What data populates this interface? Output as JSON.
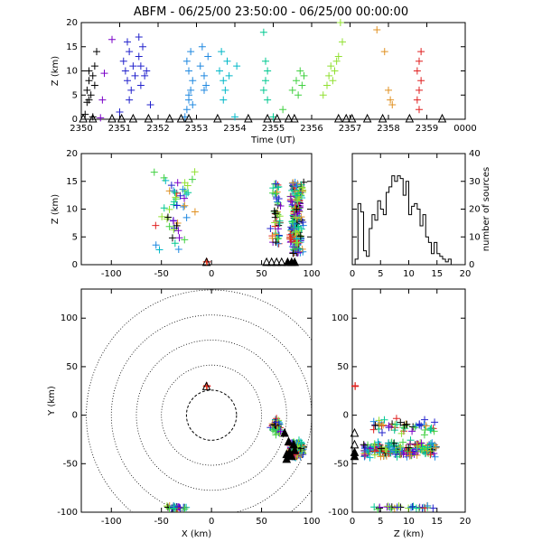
{
  "title": "ABFM - 06/25/00 23:50:00 - 06/25/00 00:00:00",
  "chart_data": [
    {
      "id": "time-height",
      "type": "scatter",
      "xlabel": "Time (UT)",
      "ylabel": "Z (km)",
      "xticks": [
        "2350",
        "2351",
        "2352",
        "2353",
        "2354",
        "2355",
        "2356",
        "2357",
        "2358",
        "2359",
        "0000"
      ],
      "xlim": [
        0,
        10
      ],
      "ylim": [
        0,
        20
      ],
      "yticks": [
        0,
        5,
        10,
        15,
        20
      ],
      "marker": "plus",
      "color_encoding": "time (purple → red)",
      "series": [
        {
          "color": "#000000",
          "x": [
            0.15,
            0.15,
            0.2,
            0.2,
            0.25,
            0.3,
            0.35,
            0.35,
            0.4,
            0.1,
            0.3,
            0.2
          ],
          "y": [
            3.5,
            6,
            8,
            10,
            5,
            9,
            7,
            11,
            14,
            1,
            0.5,
            4
          ]
        },
        {
          "color": "#7a00c8",
          "x": [
            0.6,
            0.55,
            0.8,
            0.5
          ],
          "y": [
            9.5,
            4,
            16.5,
            0.3
          ]
        },
        {
          "color": "#2222cc",
          "x": [
            1.1,
            1.15,
            1.2,
            1.25,
            1.3,
            1.35,
            1.4,
            1.2,
            1.25,
            1.5,
            1.55,
            1.6,
            1.65,
            1.7,
            1.55,
            1.5,
            1.8,
            1.0
          ],
          "y": [
            12,
            10,
            8,
            14,
            6,
            11,
            9,
            16,
            4,
            13,
            11,
            15,
            9,
            10,
            7,
            17,
            3,
            1.5
          ]
        },
        {
          "color": "#1f88e0",
          "x": [
            2.75,
            2.8,
            2.85,
            2.9,
            2.8,
            2.75,
            2.85,
            2.9,
            2.8,
            3.1,
            3.2,
            3.3,
            3.25,
            3.15,
            3.2,
            2.7
          ],
          "y": [
            2,
            4,
            6,
            8,
            10,
            12,
            14,
            3,
            5,
            11,
            9,
            13,
            7,
            15,
            6,
            0.5
          ]
        },
        {
          "color": "#00b8c8",
          "x": [
            3.6,
            3.7,
            3.8,
            3.75,
            3.65,
            3.7,
            3.85,
            4.05,
            4.0
          ],
          "y": [
            10,
            8,
            12,
            6,
            14,
            4,
            9,
            11,
            0.5
          ]
        },
        {
          "color": "#00c890",
          "x": [
            4.75,
            4.8,
            4.85,
            4.8,
            4.75,
            4.85,
            5.0
          ],
          "y": [
            18,
            12,
            10,
            8,
            6,
            4,
            0.5
          ]
        },
        {
          "color": "#40d040",
          "x": [
            5.25,
            5.5,
            5.6,
            5.7,
            5.75,
            5.8,
            5.65
          ],
          "y": [
            2,
            6,
            8,
            10,
            7,
            9,
            5
          ]
        },
        {
          "color": "#90e030",
          "x": [
            6.3,
            6.4,
            6.45,
            6.5,
            6.55,
            6.6,
            6.7,
            6.8,
            6.65,
            6.75
          ],
          "y": [
            5,
            7,
            9,
            11,
            8,
            10,
            13,
            16,
            12,
            20
          ]
        },
        {
          "color": "#e09020",
          "x": [
            7.7,
            7.9,
            8.0,
            8.05,
            8.1
          ],
          "y": [
            18.5,
            14,
            6,
            4,
            3
          ]
        },
        {
          "color": "#e02020",
          "x": [
            8.75,
            8.8,
            8.85,
            8.75,
            8.8,
            8.85,
            8.8
          ],
          "y": [
            4,
            6,
            8,
            10,
            12,
            14,
            2
          ]
        }
      ],
      "stations": {
        "marker": "triangle",
        "x": [
          0.05,
          0.3,
          0.8,
          1.05,
          1.35,
          1.75,
          2.3,
          2.6,
          2.8,
          3.55,
          4.35,
          4.85,
          5.1,
          5.4,
          5.55,
          6.7,
          6.9,
          7.05,
          7.45,
          7.85,
          8.55,
          9.4
        ]
      }
    },
    {
      "id": "x-z",
      "type": "scatter",
      "xlabel": "",
      "ylabel": "Z (km)",
      "xlim": [
        -130,
        100
      ],
      "xticks": [
        -100,
        -50,
        0,
        50,
        100
      ],
      "ylim": [
        0,
        20
      ],
      "yticks": [
        0,
        5,
        10,
        15,
        20
      ],
      "marker": "plus"
    },
    {
      "id": "histogram",
      "type": "bar",
      "xlabel": "",
      "ylabel": "number of sources",
      "xlim": [
        0,
        20
      ],
      "xticks": [
        0,
        5,
        10,
        15,
        20
      ],
      "ylim": [
        0,
        40
      ],
      "yticks": [
        0,
        10,
        20,
        30,
        40
      ],
      "bin_width": 0.5,
      "values": [
        0,
        2,
        22,
        19,
        5,
        3,
        13,
        18,
        16,
        23,
        20,
        18,
        26,
        28,
        32,
        30,
        32,
        31,
        25,
        30,
        18,
        21,
        22,
        20,
        14,
        18,
        10,
        8,
        4,
        8,
        4,
        3,
        2,
        1,
        2,
        0,
        0,
        0,
        0,
        0
      ]
    },
    {
      "id": "x-y",
      "type": "scatter",
      "xlabel": "X (km)",
      "ylabel": "Y (km)",
      "xlim": [
        -130,
        100
      ],
      "xticks": [
        -100,
        -50,
        0,
        50,
        100
      ],
      "ylim": [
        -100,
        130
      ],
      "yticks": [
        -100,
        -50,
        0,
        50,
        100
      ],
      "range_rings_km": [
        25,
        50,
        75,
        100,
        125
      ],
      "marker": "plus"
    },
    {
      "id": "z-y",
      "type": "scatter",
      "xlabel": "Z (km)",
      "ylabel": "",
      "xlim": [
        0,
        20
      ],
      "xticks": [
        0,
        5,
        10,
        15,
        20
      ],
      "ylim": [
        -100,
        130
      ],
      "yticks": [
        -100,
        -50,
        0,
        50,
        100
      ],
      "marker": "plus"
    }
  ],
  "colors": {
    "palette": [
      "#000000",
      "#7a00c8",
      "#2222cc",
      "#1f88e0",
      "#00b8c8",
      "#00c890",
      "#40d040",
      "#90e030",
      "#e09020",
      "#e02020"
    ]
  }
}
